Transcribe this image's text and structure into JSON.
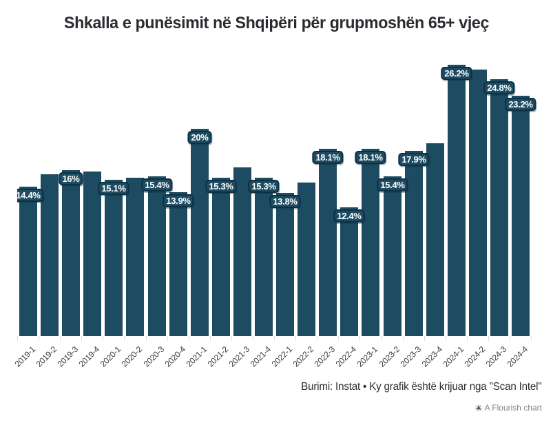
{
  "header": {
    "title": "Shkalla e punësimit në Shqipëri për grupmoshën 65+ vjeç"
  },
  "footer": {
    "source_note": "Burimi: Instat • Ky grafik është krijuar nga \"Scan Intel\"",
    "credit": {
      "icon_glyph": "✳",
      "label": "A Flourish chart"
    }
  },
  "colors": {
    "background": "#ffffff",
    "bar": "#1d4b61",
    "bar_label_background": "#1d4b61",
    "bar_label_border": "#0d3044",
    "bar_label_text": "#ffffff",
    "title_text": "#2b2b31",
    "axis_text": "#3a3a3a",
    "tick": "#d9dee3",
    "source_text": "#2d2d2d",
    "credit_text": "#838383",
    "credit_icon": "#000000"
  },
  "chart_data": {
    "type": "bar",
    "title": "Shkalla e punësimit në Shqipëri për grupmoshën 65+ vjeç",
    "xlabel": "",
    "ylabel": "",
    "ylim": [
      0,
      27
    ],
    "grid": false,
    "legend": "none",
    "value_suffix": "%",
    "categories": [
      "2019-1",
      "2019-2",
      "2019-3",
      "2019-4",
      "2020-1",
      "2020-2",
      "2020-3",
      "2020-4",
      "2021-1",
      "2021-2",
      "2021-3",
      "2021-4",
      "2022-1",
      "2022-2",
      "2022-3",
      "2022-4",
      "2023-1",
      "2023-2",
      "2023-3",
      "2023-4",
      "2024-1",
      "2024-2",
      "2024-3",
      "2024-4"
    ],
    "values": [
      14.4,
      15.6,
      16,
      15.9,
      15.1,
      15.3,
      15.4,
      13.9,
      20,
      15.3,
      16.3,
      15.3,
      13.8,
      14.8,
      18.1,
      12.4,
      18.1,
      15.4,
      17.9,
      18.6,
      26.2,
      25.7,
      24.8,
      23.2
    ],
    "bar_labels": [
      "14.4%",
      null,
      "16%",
      null,
      "15.1%",
      null,
      "15.4%",
      "13.9%",
      "20%",
      "15.3%",
      null,
      "15.3%",
      "13.8%",
      null,
      "18.1%",
      "12.4%",
      "18.1%",
      "15.4%",
      "17.9%",
      null,
      "26.2%",
      null,
      "24.8%",
      "23.2%"
    ]
  }
}
